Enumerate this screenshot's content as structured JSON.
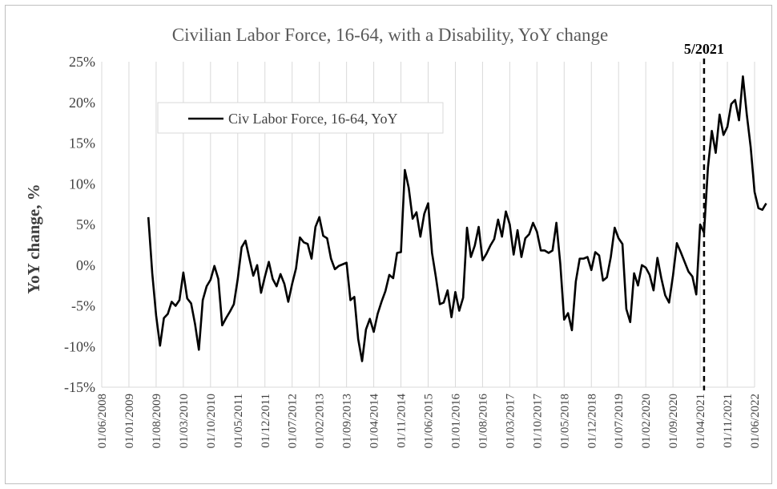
{
  "chart_data": {
    "type": "line",
    "title": "Civilian Labor Force, 16-64, with a Disability, YoY change",
    "ylabel": "YoY change, %",
    "xlabel": "",
    "ylim": [
      -15,
      25
    ],
    "yticks": [
      -15,
      -10,
      -5,
      0,
      5,
      10,
      15,
      20,
      25
    ],
    "ytick_labels": [
      "-15%",
      "-10%",
      "-5%",
      "0%",
      "5%",
      "10%",
      "15%",
      "20%",
      "25%"
    ],
    "x_tick_labels": [
      "01/06/2008",
      "01/01/2009",
      "01/08/2009",
      "01/03/2010",
      "01/10/2010",
      "01/05/2011",
      "01/12/2011",
      "01/07/2012",
      "01/02/2013",
      "01/09/2013",
      "01/04/2014",
      "01/11/2014",
      "01/06/2015",
      "01/01/2016",
      "01/08/2016",
      "01/03/2017",
      "01/10/2017",
      "01/05/2018",
      "01/12/2018",
      "01/07/2019",
      "01/02/2020",
      "01/09/2020",
      "01/04/2021",
      "01/11/2021",
      "01/06/2022"
    ],
    "grid": "vertical",
    "legend": "top-left",
    "series": [
      {
        "name": "Civ Labor Force, 16-64, YoY",
        "color": "#000000",
        "x": [
          "2009-06",
          "2009-07",
          "2009-08",
          "2009-09",
          "2009-10",
          "2009-11",
          "2009-12",
          "2010-01",
          "2010-02",
          "2010-03",
          "2010-04",
          "2010-05",
          "2010-06",
          "2010-07",
          "2010-08",
          "2010-09",
          "2010-10",
          "2010-11",
          "2010-12",
          "2011-01",
          "2011-02",
          "2011-03",
          "2011-04",
          "2011-05",
          "2011-06",
          "2011-07",
          "2011-08",
          "2011-09",
          "2011-10",
          "2011-11",
          "2011-12",
          "2012-01",
          "2012-02",
          "2012-03",
          "2012-04",
          "2012-05",
          "2012-06",
          "2012-07",
          "2012-08",
          "2012-09",
          "2012-10",
          "2012-11",
          "2012-12",
          "2013-01",
          "2013-02",
          "2013-03",
          "2013-04",
          "2013-05",
          "2013-06",
          "2013-07",
          "2013-08",
          "2013-09",
          "2013-10",
          "2013-11",
          "2013-12",
          "2014-01",
          "2014-02",
          "2014-03",
          "2014-04",
          "2014-05",
          "2014-06",
          "2014-07",
          "2014-08",
          "2014-09",
          "2014-10",
          "2014-11",
          "2014-12",
          "2015-01",
          "2015-02",
          "2015-03",
          "2015-04",
          "2015-05",
          "2015-06",
          "2015-07",
          "2015-08",
          "2015-09",
          "2015-10",
          "2015-11",
          "2015-12",
          "2016-01",
          "2016-02",
          "2016-03",
          "2016-04",
          "2016-05",
          "2016-06",
          "2016-07",
          "2016-08",
          "2016-09",
          "2016-10",
          "2016-11",
          "2016-12",
          "2017-01",
          "2017-02",
          "2017-03",
          "2017-04",
          "2017-05",
          "2017-06",
          "2017-07",
          "2017-08",
          "2017-09",
          "2017-10",
          "2017-11",
          "2017-12",
          "2018-01",
          "2018-02",
          "2018-03",
          "2018-04",
          "2018-05",
          "2018-06",
          "2018-07",
          "2018-08",
          "2018-09",
          "2018-10",
          "2018-11",
          "2018-12",
          "2019-01",
          "2019-02",
          "2019-03",
          "2019-04",
          "2019-05",
          "2019-06",
          "2019-07",
          "2019-08",
          "2019-09",
          "2019-10",
          "2019-11",
          "2019-12",
          "2020-01",
          "2020-02",
          "2020-03",
          "2020-04",
          "2020-05",
          "2020-06",
          "2020-07",
          "2020-08",
          "2020-09",
          "2020-10",
          "2020-11",
          "2020-12",
          "2021-01",
          "2021-02",
          "2021-03",
          "2021-04",
          "2021-05",
          "2021-06",
          "2021-07",
          "2021-08",
          "2021-09",
          "2021-10",
          "2021-11",
          "2021-12",
          "2022-01",
          "2022-02",
          "2022-03",
          "2022-04",
          "2022-05",
          "2022-06",
          "2022-07",
          "2022-08",
          "2022-09"
        ],
        "values": [
          5.9,
          -1.0,
          -6.2,
          -9.9,
          -6.5,
          -6.0,
          -4.5,
          -5.0,
          -4.3,
          -0.9,
          -4.1,
          -4.7,
          -7.2,
          -10.4,
          -4.3,
          -2.6,
          -1.8,
          -0.1,
          -1.7,
          -7.4,
          -6.5,
          -5.7,
          -4.8,
          -1.7,
          2.2,
          3.0,
          0.8,
          -1.3,
          0.0,
          -3.4,
          -1.4,
          0.4,
          -1.7,
          -2.6,
          -1.1,
          -2.3,
          -4.5,
          -2.3,
          -0.4,
          3.4,
          2.8,
          2.6,
          0.8,
          4.7,
          5.9,
          3.6,
          3.3,
          0.8,
          -0.5,
          -0.1,
          0.1,
          0.3,
          -4.3,
          -3.9,
          -9.1,
          -11.8,
          -7.9,
          -6.6,
          -8.2,
          -6.0,
          -4.5,
          -3.2,
          -1.2,
          -1.6,
          1.5,
          1.6,
          11.7,
          9.5,
          5.7,
          6.5,
          3.5,
          6.3,
          7.6,
          1.5,
          -1.5,
          -4.8,
          -4.6,
          -3.1,
          -6.4,
          -3.3,
          -5.6,
          -4.0,
          4.6,
          1.0,
          2.4,
          4.7,
          0.6,
          1.4,
          2.4,
          3.2,
          5.6,
          3.5,
          6.6,
          5.0,
          1.3,
          4.3,
          1.0,
          3.3,
          3.8,
          5.2,
          4.1,
          1.8,
          1.8,
          1.5,
          1.8,
          5.2,
          0.2,
          -6.7,
          -5.9,
          -8.0,
          -2.0,
          0.8,
          0.8,
          1.0,
          -0.6,
          1.6,
          1.2,
          -1.9,
          -1.5,
          1.0,
          4.6,
          3.3,
          2.6,
          -5.4,
          -7.0,
          -1.0,
          -2.5,
          0.0,
          -0.3,
          -1.2,
          -3.1,
          0.9,
          -1.6,
          -3.7,
          -4.6,
          -1.3,
          2.7,
          1.6,
          0.4,
          -0.8,
          -1.4,
          -3.6,
          5.0,
          4.0,
          12.0,
          16.5,
          13.8,
          18.5,
          16.0,
          17.0,
          19.8,
          20.3,
          17.8,
          23.2,
          18.5,
          14.5,
          9.0,
          7.0,
          6.8,
          7.6
        ]
      }
    ],
    "annotation": {
      "label": "5/2021",
      "x": "2021-05",
      "style": "dashed vertical line"
    }
  }
}
